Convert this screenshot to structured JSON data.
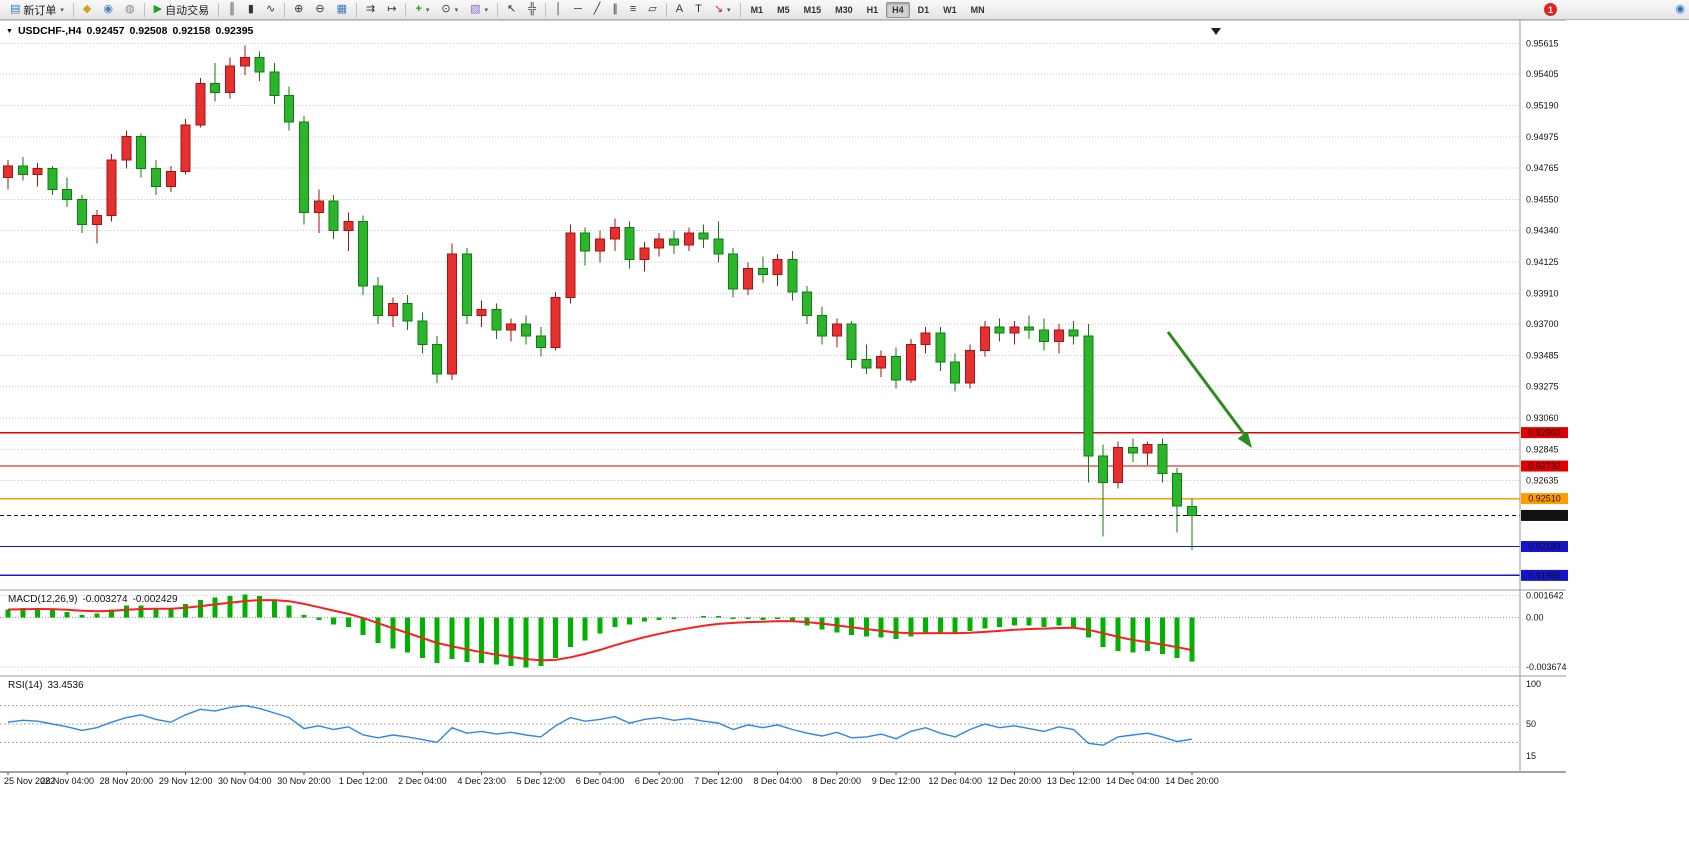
{
  "toolbar": {
    "notification_badge": "1",
    "right_icon_glyph": "◉",
    "buttons": [
      {
        "name": "new-order-button",
        "glyph": "▤",
        "glyph_color": "#3a7abd",
        "label": "新订单",
        "caret": true
      },
      {
        "sep": true
      },
      {
        "name": "announcement-icon",
        "glyph": "◆",
        "glyph_color": "#d4a017"
      },
      {
        "name": "depth-of-market-icon",
        "glyph": "◉",
        "glyph_color": "#4a7fc0"
      },
      {
        "name": "alerts-icon",
        "glyph": "◍",
        "glyph_color": "#8a8a8a"
      },
      {
        "sep": true
      },
      {
        "name": "auto-trading-button",
        "glyph": "▶",
        "glyph_color": "#1fa01f",
        "label": "自动交易"
      },
      {
        "sep": true
      },
      {
        "name": "bars-chart-icon",
        "glyph": "║",
        "glyph_color": "#333333"
      },
      {
        "name": "candles-chart-icon",
        "glyph": "▮",
        "glyph_color": "#333333"
      },
      {
        "name": "line-chart-icon",
        "glyph": "∿",
        "glyph_color": "#333333"
      },
      {
        "sep": true
      },
      {
        "name": "zoom-in-icon",
        "glyph": "⊕",
        "glyph_color": "#333333"
      },
      {
        "name": "zoom-out-icon",
        "glyph": "⊖",
        "glyph_color": "#333333"
      },
      {
        "name": "tile-windows-icon",
        "glyph": "▦",
        "glyph_color": "#3a7abd"
      },
      {
        "sep": true
      },
      {
        "name": "auto-scroll-icon",
        "glyph": "⇉",
        "glyph_color": "#333333"
      },
      {
        "name": "chart-shift-icon",
        "glyph": "↦",
        "glyph_color": "#333333"
      },
      {
        "sep": true
      },
      {
        "name": "indicators-icon",
        "glyph": "+",
        "glyph_color": "#1fa01f",
        "caret": true
      },
      {
        "name": "periods-icon",
        "glyph": "⊙",
        "glyph_color": "#333333",
        "caret": true
      },
      {
        "name": "templates-icon",
        "glyph": "▨",
        "glyph_color": "#8a6ad0",
        "caret": true
      },
      {
        "sep": true
      },
      {
        "name": "cursor-icon",
        "glyph": "↖",
        "glyph_color": "#333333"
      },
      {
        "name": "crosshair-icon",
        "glyph": "╬",
        "glyph_color": "#333333"
      },
      {
        "sep": true
      },
      {
        "name": "vertical-line-icon",
        "glyph": "│",
        "glyph_color": "#333333"
      },
      {
        "name": "horizontal-line-icon",
        "glyph": "─",
        "glyph_color": "#333333"
      },
      {
        "name": "trendline-icon",
        "glyph": "╱",
        "glyph_color": "#333333"
      },
      {
        "name": "channel-icon",
        "glyph": "∥",
        "glyph_color": "#333333"
      },
      {
        "name": "fibonacci-icon",
        "glyph": "≡",
        "glyph_color": "#333333"
      },
      {
        "name": "shapes-icon",
        "glyph": "▱",
        "glyph_color": "#333333"
      },
      {
        "sep": true
      },
      {
        "name": "text-icon",
        "glyph": "A",
        "glyph_color": "#333333"
      },
      {
        "name": "text-label-icon",
        "glyph": "T",
        "glyph_color": "#333333"
      },
      {
        "name": "arrows-icon",
        "glyph": "↘",
        "glyph_color": "#cc2020",
        "caret": true
      },
      {
        "sep": true
      }
    ],
    "timeframes": {
      "items": [
        "M1",
        "M5",
        "M15",
        "M30",
        "H1",
        "H4",
        "D1",
        "W1",
        "MN"
      ],
      "active": "H4"
    }
  },
  "colors": {
    "candle_up": "#e53030",
    "candle_up_stroke": "#a81212",
    "candle_down": "#2cb52c",
    "candle_down_stroke": "#0f7d0f",
    "macd_histogram": "#00b200",
    "macd_signal": "#ff1e1e",
    "rsi_line": "#2e86e8",
    "grid": "#c4c4c4",
    "arrow": "#2e8b1e"
  },
  "chart_data": {
    "type": "candlestick",
    "symbol": "USDCHF-",
    "timeframe": "H4",
    "title_text": "USDCHF-,H4",
    "dropdown_glyph": "▼",
    "ohlc_current": {
      "o": "0.92457",
      "h": "0.92508",
      "l": "0.92158",
      "c": "0.92395"
    },
    "y_range": [
      0.919,
      0.9572
    ],
    "price_scale_labels": [
      "0.95615",
      "0.95405",
      "0.95190",
      "0.94975",
      "0.94765",
      "0.94550",
      "0.94340",
      "0.94125",
      "0.93910",
      "0.93700",
      "0.93485",
      "0.93275",
      "0.93060",
      "0.92845",
      "0.92635"
    ],
    "x_label_step": 4,
    "x_labels": [
      "25 Nov 2022",
      "28 Nov 04:00",
      "28 Nov 20:00",
      "29 Nov 12:00",
      "30 Nov 04:00",
      "30 Nov 20:00",
      "1 Dec 12:00",
      "2 Dec 04:00",
      "4 Dec 23:00",
      "5 Dec 12:00",
      "6 Dec 04:00",
      "6 Dec 20:00",
      "7 Dec 12:00",
      "8 Dec 04:00",
      "8 Dec 20:00",
      "9 Dec 12:00",
      "12 Dec 04:00",
      "12 Dec 20:00",
      "13 Dec 12:00",
      "14 Dec 04:00",
      "14 Dec 20:00"
    ],
    "levels": [
      {
        "label": "0.92960",
        "price": 0.9296,
        "color": "#e00000",
        "style": "solid"
      },
      {
        "label": "0.92732",
        "price": 0.92732,
        "color": "#e00000",
        "style": "solid"
      },
      {
        "label": "0.92510",
        "price": 0.9251,
        "color": "#ff9d00",
        "style": "solid"
      },
      {
        "label": "0.92395",
        "price": 0.92395,
        "color": "#111111",
        "style": "dash",
        "role": "bid"
      },
      {
        "label": "0.92183",
        "price": 0.92183,
        "color": "#1515cc",
        "style": "solid"
      },
      {
        "label": "0.91986",
        "price": 0.91986,
        "color": "#1515cc",
        "style": "solid"
      }
    ],
    "candles": [
      [
        0.947,
        0.9482,
        0.9462,
        0.9478
      ],
      [
        0.9478,
        0.9484,
        0.9468,
        0.9472
      ],
      [
        0.9472,
        0.948,
        0.9464,
        0.9476
      ],
      [
        0.9476,
        0.9478,
        0.9458,
        0.9462
      ],
      [
        0.9462,
        0.947,
        0.945,
        0.9455
      ],
      [
        0.9455,
        0.9458,
        0.9432,
        0.9438
      ],
      [
        0.9438,
        0.9448,
        0.9425,
        0.9444
      ],
      [
        0.9444,
        0.9486,
        0.944,
        0.9482
      ],
      [
        0.9482,
        0.9502,
        0.9476,
        0.9498
      ],
      [
        0.9498,
        0.95,
        0.947,
        0.9476
      ],
      [
        0.9476,
        0.9482,
        0.9458,
        0.9464
      ],
      [
        0.9464,
        0.9478,
        0.946,
        0.9474
      ],
      [
        0.9474,
        0.951,
        0.9472,
        0.9506
      ],
      [
        0.9506,
        0.9538,
        0.9504,
        0.9534
      ],
      [
        0.9534,
        0.9548,
        0.9522,
        0.9528
      ],
      [
        0.9528,
        0.9552,
        0.9524,
        0.9546
      ],
      [
        0.9546,
        0.956,
        0.954,
        0.9552
      ],
      [
        0.9552,
        0.9556,
        0.9536,
        0.9542
      ],
      [
        0.9542,
        0.9548,
        0.952,
        0.9526
      ],
      [
        0.9526,
        0.9532,
        0.9502,
        0.9508
      ],
      [
        0.9508,
        0.9512,
        0.9438,
        0.9446
      ],
      [
        0.9446,
        0.9462,
        0.9432,
        0.9454
      ],
      [
        0.9454,
        0.9458,
        0.9428,
        0.9434
      ],
      [
        0.9434,
        0.9446,
        0.942,
        0.944
      ],
      [
        0.944,
        0.9444,
        0.939,
        0.9396
      ],
      [
        0.9396,
        0.9402,
        0.937,
        0.9376
      ],
      [
        0.9376,
        0.9388,
        0.9368,
        0.9384
      ],
      [
        0.9384,
        0.939,
        0.9366,
        0.9372
      ],
      [
        0.9372,
        0.9378,
        0.935,
        0.9356
      ],
      [
        0.9356,
        0.9362,
        0.933,
        0.9336
      ],
      [
        0.9336,
        0.9425,
        0.9332,
        0.9418
      ],
      [
        0.9418,
        0.9422,
        0.937,
        0.9376
      ],
      [
        0.9376,
        0.9386,
        0.9368,
        0.938
      ],
      [
        0.938,
        0.9384,
        0.936,
        0.9366
      ],
      [
        0.9366,
        0.9374,
        0.9358,
        0.937
      ],
      [
        0.937,
        0.9376,
        0.9356,
        0.9362
      ],
      [
        0.9362,
        0.9368,
        0.9348,
        0.9354
      ],
      [
        0.9354,
        0.9392,
        0.9352,
        0.9388
      ],
      [
        0.9388,
        0.9438,
        0.9384,
        0.9432
      ],
      [
        0.9432,
        0.9436,
        0.941,
        0.942
      ],
      [
        0.942,
        0.9434,
        0.9412,
        0.9428
      ],
      [
        0.9428,
        0.9442,
        0.942,
        0.9436
      ],
      [
        0.9436,
        0.944,
        0.9408,
        0.9414
      ],
      [
        0.9414,
        0.9426,
        0.9406,
        0.9422
      ],
      [
        0.9422,
        0.9432,
        0.9416,
        0.9428
      ],
      [
        0.9428,
        0.9434,
        0.9418,
        0.9424
      ],
      [
        0.9424,
        0.9436,
        0.942,
        0.9432
      ],
      [
        0.9432,
        0.9438,
        0.9422,
        0.9428
      ],
      [
        0.9428,
        0.944,
        0.9412,
        0.9418
      ],
      [
        0.9418,
        0.9422,
        0.9388,
        0.9394
      ],
      [
        0.9394,
        0.9412,
        0.939,
        0.9408
      ],
      [
        0.9408,
        0.9416,
        0.9398,
        0.9404
      ],
      [
        0.9404,
        0.9418,
        0.9396,
        0.9414
      ],
      [
        0.9414,
        0.942,
        0.9386,
        0.9392
      ],
      [
        0.9392,
        0.9396,
        0.937,
        0.9376
      ],
      [
        0.9376,
        0.9382,
        0.9356,
        0.9362
      ],
      [
        0.9362,
        0.9374,
        0.9354,
        0.937
      ],
      [
        0.937,
        0.9372,
        0.934,
        0.9346
      ],
      [
        0.9346,
        0.9356,
        0.9336,
        0.934
      ],
      [
        0.934,
        0.9352,
        0.9334,
        0.9348
      ],
      [
        0.9348,
        0.9354,
        0.9326,
        0.9332
      ],
      [
        0.9332,
        0.936,
        0.933,
        0.9356
      ],
      [
        0.9356,
        0.9368,
        0.935,
        0.9364
      ],
      [
        0.9364,
        0.9368,
        0.9338,
        0.9344
      ],
      [
        0.9344,
        0.935,
        0.9324,
        0.933
      ],
      [
        0.933,
        0.9356,
        0.9326,
        0.9352
      ],
      [
        0.9352,
        0.9372,
        0.9348,
        0.9368
      ],
      [
        0.9368,
        0.9374,
        0.9358,
        0.9364
      ],
      [
        0.9364,
        0.9372,
        0.9356,
        0.9368
      ],
      [
        0.9368,
        0.9376,
        0.936,
        0.9366
      ],
      [
        0.9366,
        0.9374,
        0.9352,
        0.9358
      ],
      [
        0.9358,
        0.937,
        0.935,
        0.9366
      ],
      [
        0.9366,
        0.9372,
        0.9356,
        0.9362
      ],
      [
        0.9362,
        0.937,
        0.9262,
        0.928
      ],
      [
        0.928,
        0.9288,
        0.9225,
        0.9262
      ],
      [
        0.9262,
        0.929,
        0.9258,
        0.9286
      ],
      [
        0.9286,
        0.9292,
        0.9276,
        0.9282
      ],
      [
        0.9282,
        0.929,
        0.9274,
        0.9288
      ],
      [
        0.9288,
        0.9292,
        0.9262,
        0.9268
      ],
      [
        0.9268,
        0.9272,
        0.9228,
        0.9246
      ],
      [
        0.92457,
        0.92508,
        0.92158,
        0.92395
      ]
    ],
    "macd": {
      "display_label": "MACD(12,26,9)",
      "display_main": "-0.003274",
      "display_signal": "-0.002429",
      "params": "12,26,9",
      "signal_period": 9,
      "y_range": [
        -0.0042,
        0.0019
      ],
      "scale_labels": [
        "0.001642",
        "0.00",
        "-0.003674"
      ],
      "histogram": [
        0.0006,
        0.0007,
        0.0007,
        0.0006,
        0.0004,
        0.0002,
        0.0003,
        0.0006,
        0.0009,
        0.0009,
        0.0007,
        0.0007,
        0.001,
        0.0013,
        0.0015,
        0.0016,
        0.0017,
        0.0016,
        0.0013,
        0.0009,
        0.0002,
        -0.0002,
        -0.0005,
        -0.0007,
        -0.0013,
        -0.0019,
        -0.0023,
        -0.0026,
        -0.003,
        -0.0034,
        -0.0031,
        -0.0033,
        -0.0034,
        -0.0035,
        -0.0036,
        -0.0037,
        -0.0036,
        -0.003,
        -0.0022,
        -0.0017,
        -0.0012,
        -0.0007,
        -0.0005,
        -0.0003,
        -0.0002,
        -0.0001,
        0.0,
        0.0001,
        0.0001,
        -0.0001,
        -0.0001,
        -0.0002,
        -0.0001,
        -0.0003,
        -0.0006,
        -0.0009,
        -0.0011,
        -0.0013,
        -0.0014,
        -0.0015,
        -0.0016,
        -0.0014,
        -0.0012,
        -0.0011,
        -0.0012,
        -0.001,
        -0.0008,
        -0.0007,
        -0.0006,
        -0.0006,
        -0.0007,
        -0.0006,
        -0.0007,
        -0.0015,
        -0.0022,
        -0.0025,
        -0.0026,
        -0.0025,
        -0.0027,
        -0.003,
        -0.003274
      ]
    },
    "rsi": {
      "display_label": "RSI(14)",
      "display_value": "33.4536",
      "period": 14,
      "y_range": [
        0,
        100
      ],
      "scale_labels": [
        "100",
        "50",
        "15"
      ],
      "level_lines": [
        70,
        50,
        30
      ],
      "values": [
        52,
        54,
        53,
        50,
        47,
        43,
        46,
        52,
        57,
        60,
        55,
        52,
        60,
        66,
        64,
        68,
        70,
        67,
        62,
        57,
        45,
        48,
        44,
        47,
        38,
        35,
        38,
        36,
        33,
        30,
        46,
        40,
        42,
        39,
        41,
        38,
        36,
        48,
        57,
        53,
        55,
        58,
        51,
        55,
        57,
        54,
        56,
        53,
        51,
        44,
        49,
        46,
        49,
        44,
        40,
        37,
        41,
        35,
        36,
        39,
        34,
        42,
        46,
        40,
        36,
        44,
        50,
        46,
        48,
        45,
        42,
        47,
        44,
        29,
        27,
        36,
        38,
        40,
        36,
        31,
        33.4536
      ]
    },
    "annotation": {
      "type": "arrow",
      "direction": "down-right",
      "color": "#2e8b1e"
    }
  }
}
